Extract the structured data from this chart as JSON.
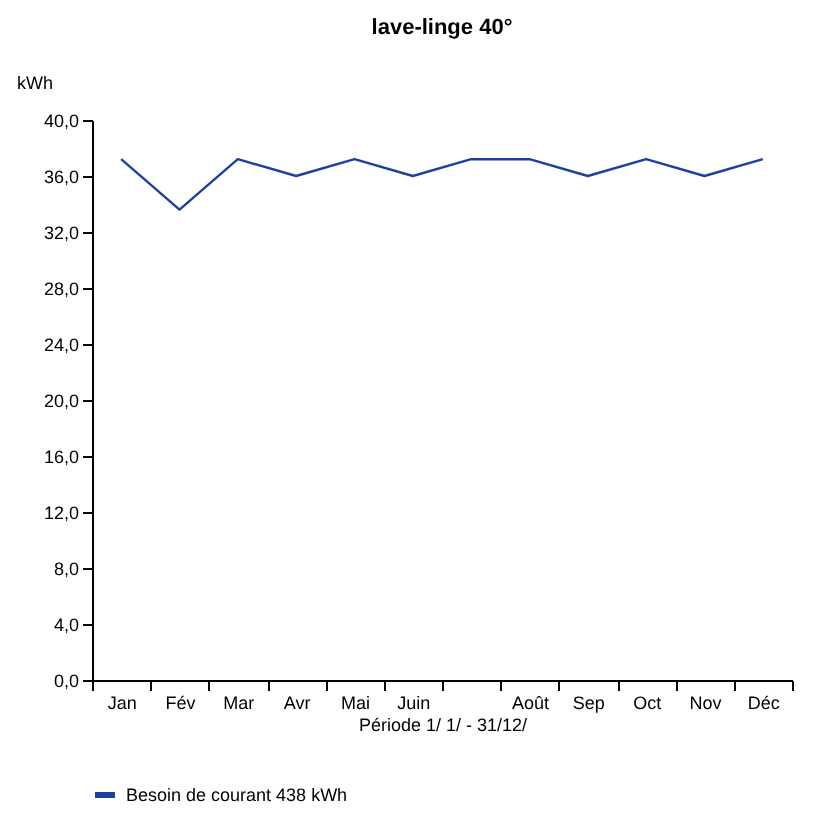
{
  "chart_data": {
    "type": "line",
    "title": "lave-linge 40°",
    "xlabel": "Période 1/ 1/ - 31/12/",
    "ylabel": "kWh",
    "categories": [
      "Jan",
      "Fév",
      "Mar",
      "Avr",
      "Mai",
      "Juin",
      null,
      "Août",
      "Sep",
      "Oct",
      "Nov",
      "Déc"
    ],
    "series": [
      {
        "name": "Besoin de courant  438  kWh",
        "color": "#1f3f9f",
        "values": [
          37.2,
          33.6,
          37.2,
          36.0,
          37.2,
          36.0,
          37.2,
          37.2,
          36.0,
          37.2,
          36.0,
          37.2
        ]
      }
    ],
    "ylim": [
      0,
      40
    ],
    "yticks": [
      {
        "value": 0,
        "label": "0,0"
      },
      {
        "value": 4,
        "label": "4,0"
      },
      {
        "value": 8,
        "label": "8,0"
      },
      {
        "value": 12,
        "label": "12,0"
      },
      {
        "value": 16,
        "label": "16,0"
      },
      {
        "value": 20,
        "label": "20,0"
      },
      {
        "value": 24,
        "label": "24,0"
      },
      {
        "value": 28,
        "label": "28,0"
      },
      {
        "value": 32,
        "label": "32,0"
      },
      {
        "value": 36,
        "label": "36,0"
      },
      {
        "value": 40,
        "label": "40,0"
      }
    ],
    "grid": false,
    "legend": "bottom",
    "marker": "none",
    "line_style": "solid"
  }
}
